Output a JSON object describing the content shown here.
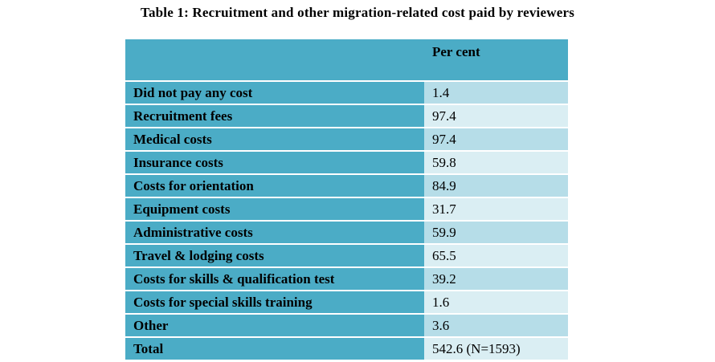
{
  "chart_data": {
    "type": "table",
    "title": "Table 1: Recruitment  and other migration-related  cost paid by reviewers",
    "columns": [
      "",
      "Per cent"
    ],
    "rows": [
      {
        "label": "Did not pay any cost",
        "value": "1.4"
      },
      {
        "label": "Recruitment fees",
        "value": "97.4"
      },
      {
        "label": "Medical costs",
        "value": "97.4"
      },
      {
        "label": "Insurance  costs",
        "value": "59.8"
      },
      {
        "label": "Costs for orientation",
        "value": "84.9"
      },
      {
        "label": "Equipment  costs",
        "value": "31.7"
      },
      {
        "label": "Administrative  costs",
        "value": "59.9"
      },
      {
        "label": "Travel & lodging costs",
        "value": "65.5"
      },
      {
        "label": "Costs for skills & qualification  test",
        "value": "39.2"
      },
      {
        "label": "Costs for special skills training",
        "value": "1.6"
      },
      {
        "label": "Other",
        "value": "3.6"
      },
      {
        "label": "Total",
        "value": "542.6 (N=1593)"
      }
    ]
  },
  "colors": {
    "header": "#4bacc6",
    "row_light": "#daeef3",
    "row_mid": "#b6dde8"
  }
}
